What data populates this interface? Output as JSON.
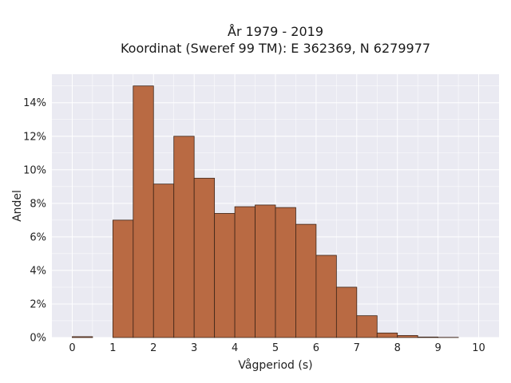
{
  "chart_data": {
    "type": "bar",
    "title_line1": "År 1979 - 2019",
    "title_line2": "Koordinat (Sweref 99 TM): E 362369, N 6279977",
    "xlabel": "Vågperiod (s)",
    "ylabel": "Andel",
    "bin_width": 0.5,
    "bins": [
      {
        "x0": 0.0,
        "value": 0.05
      },
      {
        "x0": 0.5,
        "value": 0.0
      },
      {
        "x0": 1.0,
        "value": 7.0
      },
      {
        "x0": 1.5,
        "value": 15.0
      },
      {
        "x0": 2.0,
        "value": 9.15
      },
      {
        "x0": 2.5,
        "value": 12.0
      },
      {
        "x0": 3.0,
        "value": 9.5
      },
      {
        "x0": 3.5,
        "value": 7.4
      },
      {
        "x0": 4.0,
        "value": 7.8
      },
      {
        "x0": 4.5,
        "value": 7.9
      },
      {
        "x0": 5.0,
        "value": 7.75
      },
      {
        "x0": 5.5,
        "value": 6.75
      },
      {
        "x0": 6.0,
        "value": 4.9
      },
      {
        "x0": 6.5,
        "value": 3.0
      },
      {
        "x0": 7.0,
        "value": 1.3
      },
      {
        "x0": 7.5,
        "value": 0.27
      },
      {
        "x0": 8.0,
        "value": 0.12
      },
      {
        "x0": 8.5,
        "value": 0.03
      },
      {
        "x0": 9.0,
        "value": 0.01
      }
    ],
    "xlim": [
      -0.5,
      10.5
    ],
    "ylim": [
      0,
      15.7
    ],
    "xticks": [
      0,
      1,
      2,
      3,
      4,
      5,
      6,
      7,
      8,
      9,
      10
    ],
    "xtick_labels": [
      "0",
      "1",
      "2",
      "3",
      "4",
      "5",
      "6",
      "7",
      "8",
      "9",
      "10"
    ],
    "yticks": [
      0,
      2,
      4,
      6,
      8,
      10,
      12,
      14
    ],
    "ytick_labels": [
      "0%",
      "2%",
      "4%",
      "6%",
      "8%",
      "10%",
      "12%",
      "14%"
    ],
    "grid": true,
    "colors": {
      "bar_fill": "#b96a43",
      "bar_edge": "#3d2417",
      "plot_background": "#eaeaf2",
      "grid": "#ffffff"
    }
  }
}
